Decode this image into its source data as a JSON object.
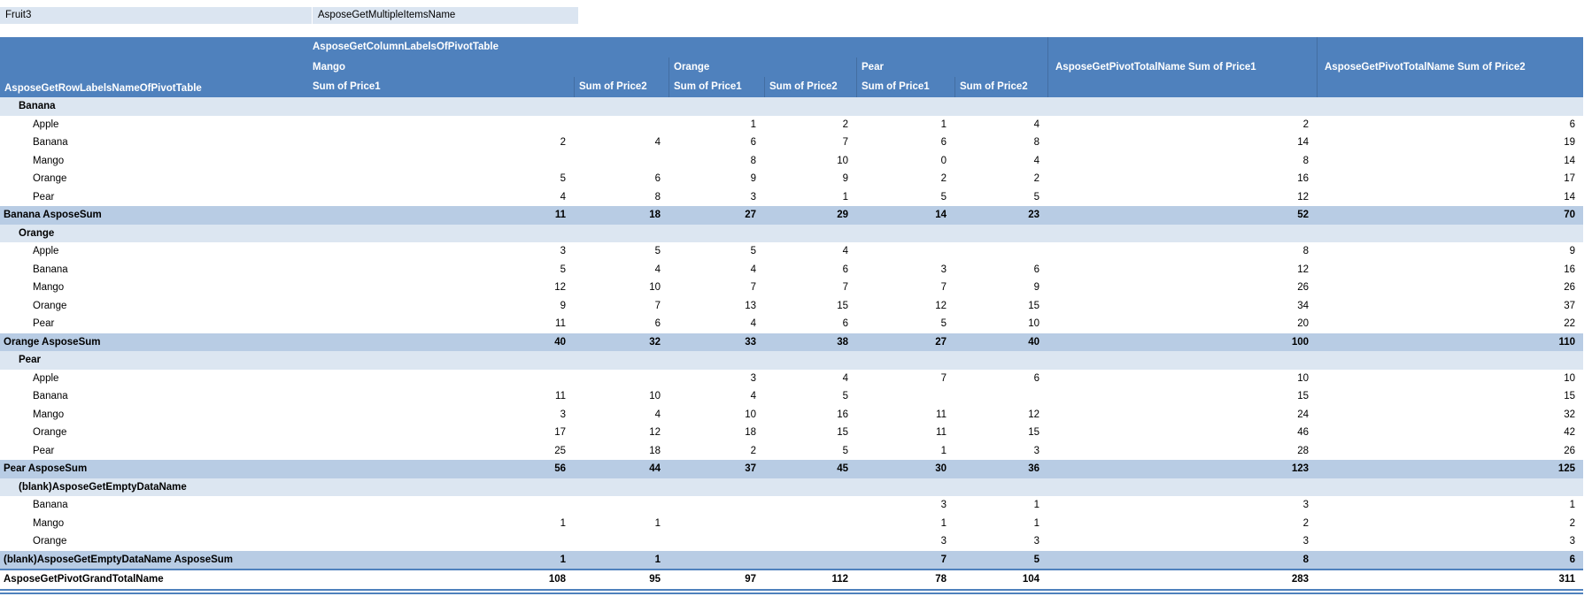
{
  "filter": {
    "field_label": "Fruit3",
    "value_label": "AsposeGetMultipleItemsName"
  },
  "header": {
    "column_labels_title": "AsposeGetColumnLabelsOfPivotTable",
    "row_labels_title": "AsposeGetRowLabelsNameOfPivotTable",
    "column_groups": [
      {
        "label": "Mango"
      },
      {
        "label": "Orange"
      },
      {
        "label": "Pear"
      }
    ],
    "value_headers": [
      "Sum of Price1",
      "Sum of Price2",
      "Sum of Price1",
      "Sum of Price2",
      "Sum of Price1",
      "Sum of Price2"
    ],
    "total_headers": [
      "AsposeGetPivotTotalName Sum of Price1",
      "AsposeGetPivotTotalName Sum of Price2"
    ]
  },
  "rows": [
    {
      "type": "group",
      "label": "Banana"
    },
    {
      "type": "item",
      "label": "Apple",
      "values": [
        "",
        "",
        1,
        2,
        1,
        4,
        2,
        6
      ]
    },
    {
      "type": "item",
      "label": "Banana",
      "values": [
        2,
        4,
        6,
        7,
        6,
        8,
        14,
        19
      ]
    },
    {
      "type": "item",
      "label": "Mango",
      "values": [
        "",
        "",
        8,
        10,
        0,
        4,
        8,
        14
      ]
    },
    {
      "type": "item",
      "label": "Orange",
      "values": [
        5,
        6,
        9,
        9,
        2,
        2,
        16,
        17
      ]
    },
    {
      "type": "item",
      "label": "Pear",
      "values": [
        4,
        8,
        3,
        1,
        5,
        5,
        12,
        14
      ]
    },
    {
      "type": "subtotal",
      "label": "Banana AsposeSum",
      "values": [
        11,
        18,
        27,
        29,
        14,
        23,
        52,
        70
      ]
    },
    {
      "type": "group",
      "label": "Orange"
    },
    {
      "type": "item",
      "label": "Apple",
      "values": [
        3,
        5,
        5,
        4,
        "",
        "",
        8,
        9
      ]
    },
    {
      "type": "item",
      "label": "Banana",
      "values": [
        5,
        4,
        4,
        6,
        3,
        6,
        12,
        16
      ]
    },
    {
      "type": "item",
      "label": "Mango",
      "values": [
        12,
        10,
        7,
        7,
        7,
        9,
        26,
        26
      ]
    },
    {
      "type": "item",
      "label": "Orange",
      "values": [
        9,
        7,
        13,
        15,
        12,
        15,
        34,
        37
      ]
    },
    {
      "type": "item",
      "label": "Pear",
      "values": [
        11,
        6,
        4,
        6,
        5,
        10,
        20,
        22
      ]
    },
    {
      "type": "subtotal",
      "label": "Orange AsposeSum",
      "values": [
        40,
        32,
        33,
        38,
        27,
        40,
        100,
        110
      ]
    },
    {
      "type": "group",
      "label": "Pear"
    },
    {
      "type": "item",
      "label": "Apple",
      "values": [
        "",
        "",
        3,
        4,
        7,
        6,
        10,
        10
      ]
    },
    {
      "type": "item",
      "label": "Banana",
      "values": [
        11,
        10,
        4,
        5,
        "",
        "",
        15,
        15
      ]
    },
    {
      "type": "item",
      "label": "Mango",
      "values": [
        3,
        4,
        10,
        16,
        11,
        12,
        24,
        32
      ]
    },
    {
      "type": "item",
      "label": "Orange",
      "values": [
        17,
        12,
        18,
        15,
        11,
        15,
        46,
        42
      ]
    },
    {
      "type": "item",
      "label": "Pear",
      "values": [
        25,
        18,
        2,
        5,
        1,
        3,
        28,
        26
      ]
    },
    {
      "type": "subtotal",
      "label": "Pear AsposeSum",
      "values": [
        56,
        44,
        37,
        45,
        30,
        36,
        123,
        125
      ]
    },
    {
      "type": "group",
      "label": "(blank)AsposeGetEmptyDataName"
    },
    {
      "type": "item",
      "label": "Banana",
      "values": [
        "",
        "",
        "",
        "",
        3,
        1,
        3,
        1
      ]
    },
    {
      "type": "item",
      "label": "Mango",
      "values": [
        1,
        1,
        "",
        "",
        1,
        1,
        2,
        2
      ]
    },
    {
      "type": "item",
      "label": "Orange",
      "values": [
        "",
        "",
        "",
        "",
        3,
        3,
        3,
        3
      ]
    },
    {
      "type": "subtotal",
      "label": "(blank)AsposeGetEmptyDataName AsposeSum",
      "values": [
        1,
        1,
        "",
        "",
        7,
        5,
        8,
        6
      ]
    },
    {
      "type": "grand",
      "label": "AsposeGetPivotGrandTotalName",
      "values": [
        108,
        95,
        97,
        112,
        78,
        104,
        283,
        311
      ]
    }
  ],
  "colors": {
    "header_bg": "#4f81bd",
    "header_text": "#ffffff",
    "subtotal_bg": "#b8cce4",
    "group_bg": "#dce6f1",
    "filter_bg": "#dbe5f1",
    "grand_border": "#4f81bd",
    "body_text": "#000000"
  }
}
